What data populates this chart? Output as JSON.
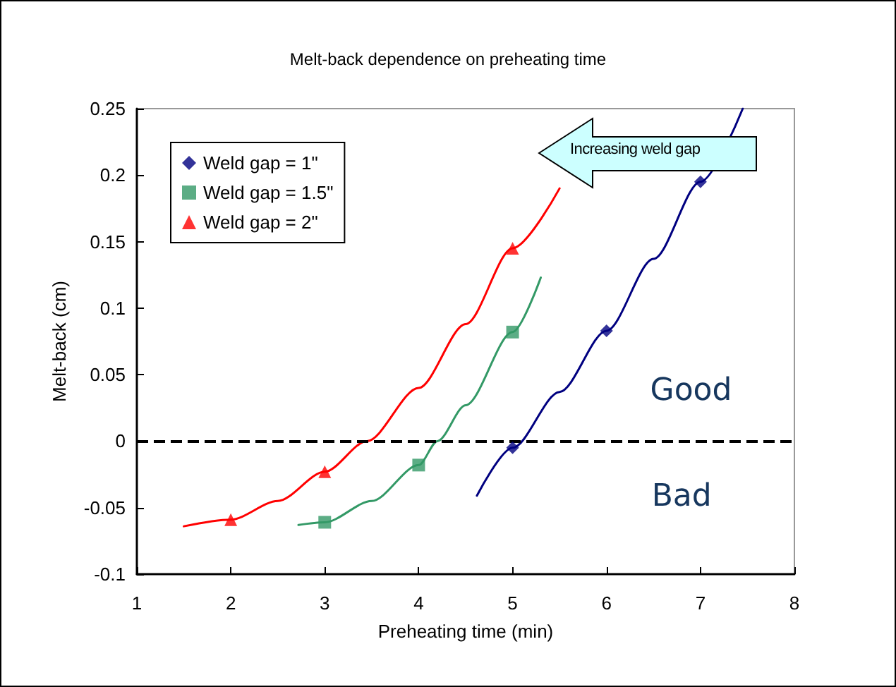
{
  "chart_data": {
    "type": "scatter",
    "title": "Melt-back dependence on preheating time",
    "xlabel": "Preheating time (min)",
    "ylabel": "Melt-back (cm)",
    "xlim": [
      1,
      8
    ],
    "xticks": [
      1,
      2,
      3,
      4,
      5,
      6,
      7,
      8
    ],
    "ylim": [
      -0.1,
      0.25
    ],
    "yticks": [
      -0.1,
      -0.05,
      0,
      0.05,
      0.1,
      0.15,
      0.2,
      0.25
    ],
    "grid": false,
    "legend": "top left",
    "series": [
      {
        "name": "Weld gap = 1\"",
        "color": "#000080",
        "marker": "diamond",
        "x": [
          5,
          6,
          7
        ],
        "values": [
          -0.005,
          0.083,
          0.195
        ]
      },
      {
        "name": "Weld gap = 1.5\"",
        "color": "#339966",
        "marker": "square",
        "x": [
          3,
          4,
          5
        ],
        "values": [
          -0.061,
          -0.018,
          0.082
        ]
      },
      {
        "name": "Weld gap = 2\"",
        "color": "#ff0000",
        "marker": "triangle",
        "x": [
          2,
          3,
          5
        ],
        "values": [
          -0.059,
          -0.023,
          0.145
        ]
      },
      {
        "type": "line",
        "color": "#000080",
        "marker": "none",
        "x": [
          4.62,
          5,
          5.5,
          6,
          6.5,
          7,
          7.45
        ],
        "values": [
          -0.041,
          -0.005,
          0.037,
          0.083,
          0.137,
          0.195,
          0.25
        ]
      },
      {
        "type": "line",
        "color": "#339966",
        "marker": "none",
        "x": [
          2.72,
          3,
          3.5,
          4,
          4.2,
          4.5,
          5,
          5.3
        ],
        "values": [
          -0.063,
          -0.061,
          -0.045,
          -0.018,
          0,
          0.027,
          0.082,
          0.123
        ]
      },
      {
        "type": "line",
        "color": "#ff0000",
        "marker": "none",
        "x": [
          1.5,
          2,
          2.5,
          3,
          3.45,
          4,
          4.5,
          5,
          5.5
        ],
        "values": [
          -0.064,
          -0.059,
          -0.045,
          -0.023,
          0,
          0.04,
          0.088,
          0.145,
          0.19
        ]
      }
    ],
    "ref_lines": [
      {
        "axis": "y",
        "value": 0,
        "color": "#000000",
        "line_style": "dashed"
      }
    ],
    "annotations": [
      "Increasing weld gap",
      "Good",
      "Bad"
    ]
  }
}
